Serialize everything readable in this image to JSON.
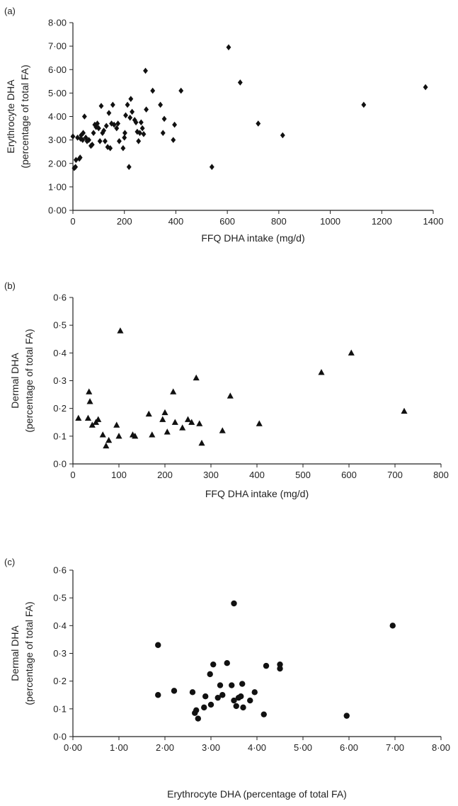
{
  "chart_data": [
    {
      "panel": "(a)",
      "type": "scatter",
      "marker": "diamond",
      "xlabel": "FFQ DHA intake (mg/d)",
      "ylabel_lines": [
        "Erythrocyte DHA",
        "(percentage of total FA)"
      ],
      "xlim": [
        0,
        1400
      ],
      "ylim": [
        0,
        8
      ],
      "xticks": [
        0,
        200,
        400,
        600,
        800,
        1000,
        1200,
        1400
      ],
      "xtick_labels": [
        "0",
        "200",
        "400",
        "600",
        "800",
        "1000",
        "1200",
        "1400"
      ],
      "yticks": [
        0,
        1,
        2,
        3,
        4,
        5,
        6,
        7,
        8
      ],
      "ytick_labels": [
        "0·00",
        "1·00",
        "2·00",
        "3·00",
        "4·00",
        "5·00",
        "6·00",
        "7·00",
        "8·00"
      ],
      "points": [
        [
          0,
          3.15
        ],
        [
          5,
          1.8
        ],
        [
          10,
          1.85
        ],
        [
          12,
          2.15
        ],
        [
          18,
          3.1
        ],
        [
          25,
          2.2
        ],
        [
          28,
          2.25
        ],
        [
          30,
          3.05
        ],
        [
          32,
          3.2
        ],
        [
          38,
          3.0
        ],
        [
          40,
          3.3
        ],
        [
          45,
          4.0
        ],
        [
          50,
          3.1
        ],
        [
          55,
          2.95
        ],
        [
          62,
          3.0
        ],
        [
          70,
          2.75
        ],
        [
          75,
          2.8
        ],
        [
          80,
          3.3
        ],
        [
          85,
          3.65
        ],
        [
          90,
          3.55
        ],
        [
          95,
          3.7
        ],
        [
          100,
          3.5
        ],
        [
          105,
          2.95
        ],
        [
          110,
          4.45
        ],
        [
          115,
          3.3
        ],
        [
          120,
          3.4
        ],
        [
          125,
          2.95
        ],
        [
          130,
          3.6
        ],
        [
          135,
          2.7
        ],
        [
          140,
          4.15
        ],
        [
          145,
          2.65
        ],
        [
          150,
          3.7
        ],
        [
          155,
          4.5
        ],
        [
          160,
          3.65
        ],
        [
          170,
          3.5
        ],
        [
          175,
          3.7
        ],
        [
          180,
          2.95
        ],
        [
          195,
          2.65
        ],
        [
          200,
          3.1
        ],
        [
          202,
          3.3
        ],
        [
          205,
          4.05
        ],
        [
          212,
          4.5
        ],
        [
          218,
          1.85
        ],
        [
          222,
          3.95
        ],
        [
          225,
          4.75
        ],
        [
          230,
          4.2
        ],
        [
          240,
          3.85
        ],
        [
          245,
          3.75
        ],
        [
          250,
          3.35
        ],
        [
          255,
          2.95
        ],
        [
          260,
          3.3
        ],
        [
          265,
          3.75
        ],
        [
          270,
          3.5
        ],
        [
          275,
          3.25
        ],
        [
          282,
          5.95
        ],
        [
          285,
          4.3
        ],
        [
          310,
          5.1
        ],
        [
          340,
          4.5
        ],
        [
          350,
          3.3
        ],
        [
          355,
          3.9
        ],
        [
          390,
          3.0
        ],
        [
          395,
          3.65
        ],
        [
          420,
          5.1
        ],
        [
          540,
          1.85
        ],
        [
          605,
          6.95
        ],
        [
          650,
          5.45
        ],
        [
          720,
          3.7
        ],
        [
          815,
          3.2
        ],
        [
          1130,
          4.5
        ],
        [
          1370,
          5.25
        ]
      ]
    },
    {
      "panel": "(b)",
      "type": "scatter",
      "marker": "triangle",
      "xlabel": "FFQ DHA intake (mg/d)",
      "ylabel_lines": [
        "Dermal DHA",
        "(percentage of total FA)"
      ],
      "xlim": [
        0,
        800
      ],
      "ylim": [
        0,
        0.6
      ],
      "xticks": [
        0,
        100,
        200,
        300,
        400,
        500,
        600,
        700,
        800
      ],
      "xtick_labels": [
        "0",
        "100",
        "200",
        "300",
        "400",
        "500",
        "600",
        "700",
        "800"
      ],
      "yticks": [
        0,
        0.1,
        0.2,
        0.3,
        0.4,
        0.5,
        0.6
      ],
      "ytick_labels": [
        "0·0",
        "0·1",
        "0·2",
        "0·3",
        "0·4",
        "0·5",
        "0·6"
      ],
      "points": [
        [
          12,
          0.165
        ],
        [
          33,
          0.165
        ],
        [
          35,
          0.26
        ],
        [
          37,
          0.225
        ],
        [
          42,
          0.14
        ],
        [
          50,
          0.15
        ],
        [
          55,
          0.16
        ],
        [
          65,
          0.105
        ],
        [
          72,
          0.065
        ],
        [
          78,
          0.085
        ],
        [
          95,
          0.14
        ],
        [
          100,
          0.1
        ],
        [
          103,
          0.48
        ],
        [
          130,
          0.105
        ],
        [
          135,
          0.1
        ],
        [
          165,
          0.18
        ],
        [
          172,
          0.105
        ],
        [
          195,
          0.16
        ],
        [
          200,
          0.185
        ],
        [
          205,
          0.115
        ],
        [
          218,
          0.26
        ],
        [
          222,
          0.15
        ],
        [
          238,
          0.13
        ],
        [
          250,
          0.16
        ],
        [
          258,
          0.15
        ],
        [
          268,
          0.31
        ],
        [
          275,
          0.145
        ],
        [
          280,
          0.075
        ],
        [
          325,
          0.12
        ],
        [
          342,
          0.245
        ],
        [
          405,
          0.145
        ],
        [
          540,
          0.33
        ],
        [
          605,
          0.4
        ],
        [
          720,
          0.19
        ]
      ]
    },
    {
      "panel": "(c)",
      "type": "scatter",
      "marker": "circle",
      "xlabel": "Erythrocyte DHA (percentage of total FA)",
      "ylabel_lines": [
        "Dermal DHA",
        "(percentage of total FA)"
      ],
      "xlim": [
        0,
        8
      ],
      "ylim": [
        0,
        0.6
      ],
      "xticks": [
        0,
        1,
        2,
        3,
        4,
        5,
        6,
        7,
        8
      ],
      "xtick_labels": [
        "0·00",
        "1·00",
        "2·00",
        "3·00",
        "4·00",
        "5·00",
        "6·00",
        "7·00",
        "8·00"
      ],
      "yticks": [
        0,
        0.1,
        0.2,
        0.3,
        0.4,
        0.5,
        0.6
      ],
      "ytick_labels": [
        "0·0",
        "0·1",
        "0·2",
        "0·3",
        "0·4",
        "0·5",
        "0·6"
      ],
      "points": [
        [
          1.85,
          0.33
        ],
        [
          1.85,
          0.15
        ],
        [
          2.2,
          0.165
        ],
        [
          2.6,
          0.16
        ],
        [
          2.65,
          0.085
        ],
        [
          2.68,
          0.095
        ],
        [
          2.72,
          0.065
        ],
        [
          2.85,
          0.105
        ],
        [
          2.88,
          0.145
        ],
        [
          2.98,
          0.225
        ],
        [
          3.0,
          0.115
        ],
        [
          3.05,
          0.26
        ],
        [
          3.15,
          0.14
        ],
        [
          3.2,
          0.185
        ],
        [
          3.25,
          0.15
        ],
        [
          3.35,
          0.265
        ],
        [
          3.45,
          0.185
        ],
        [
          3.5,
          0.48
        ],
        [
          3.5,
          0.13
        ],
        [
          3.55,
          0.11
        ],
        [
          3.6,
          0.14
        ],
        [
          3.65,
          0.145
        ],
        [
          3.68,
          0.19
        ],
        [
          3.7,
          0.105
        ],
        [
          3.85,
          0.13
        ],
        [
          3.95,
          0.16
        ],
        [
          4.15,
          0.08
        ],
        [
          4.2,
          0.255
        ],
        [
          4.5,
          0.26
        ],
        [
          4.5,
          0.245
        ],
        [
          5.95,
          0.075
        ],
        [
          6.95,
          0.4
        ]
      ]
    }
  ]
}
